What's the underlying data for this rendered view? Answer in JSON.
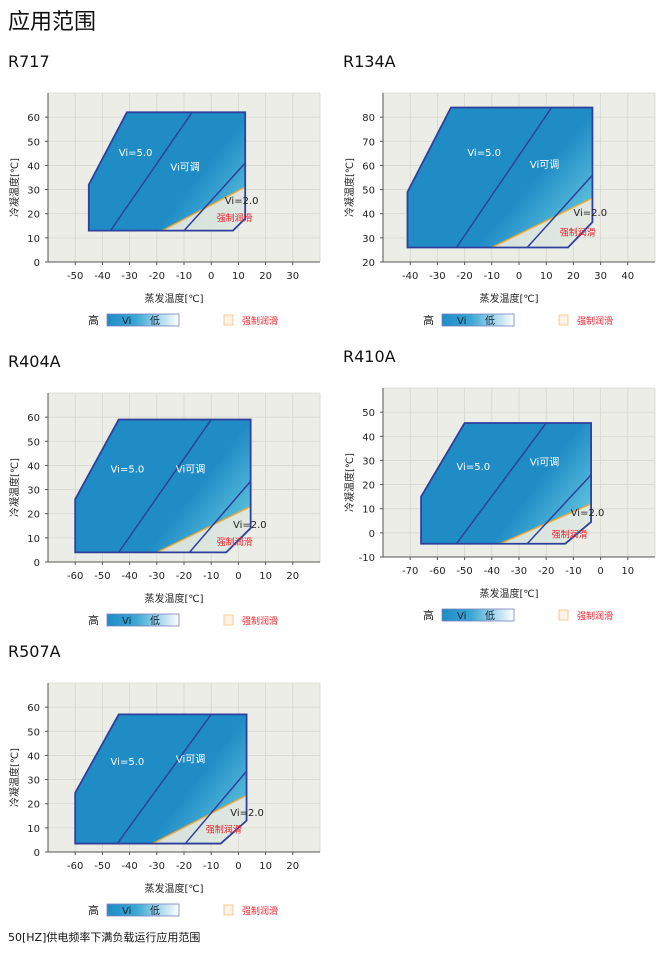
{
  "page_title": "应用范围",
  "footnote": "50[HZ]供电频率下满负载运行应用范围",
  "colors": {
    "border": "#2f3f9c",
    "lube_line": "#f0a830",
    "plot_bg": "#ecede6",
    "grid": "#d6d7cf",
    "vi_dark": "#1f8cc6",
    "vi_mid": "#5cc0dc",
    "vi_light": "#ffffff",
    "lube_text": "#e8202a",
    "lube_fill": "#f6efe0"
  },
  "legend": {
    "high": "高",
    "vi": "Vi",
    "low": "低",
    "lube": "强制润滑"
  },
  "chart_data": [
    {
      "type": "area",
      "title": "R717",
      "xlabel": "蒸发温度[℃]",
      "ylabel": "冷凝温度[℃]",
      "xlim": [
        -60,
        40
      ],
      "ylim": [
        0,
        70
      ],
      "xticks": [
        -50,
        -40,
        -30,
        -20,
        -10,
        0,
        10,
        20,
        30
      ],
      "yticks": [
        0,
        10,
        20,
        30,
        40,
        50,
        60
      ],
      "grid": true,
      "envelope": [
        [
          -45,
          13
        ],
        [
          -45,
          32
        ],
        [
          -31,
          62
        ],
        [
          12.5,
          62
        ],
        [
          12.5,
          18
        ],
        [
          8,
          13
        ]
      ],
      "vi5_line": [
        [
          -37,
          13
        ],
        [
          -7,
          62
        ]
      ],
      "vi2_line": [
        [
          -10,
          13
        ],
        [
          12.5,
          41
        ]
      ],
      "lube_line": [
        [
          -18,
          13
        ],
        [
          12.5,
          31
        ]
      ],
      "labels": [
        {
          "text": "Vi=5.0",
          "x": -34,
          "y": 44
        },
        {
          "text": "Vi可调",
          "x": -15,
          "y": 38
        },
        {
          "text": "Vi=2.0",
          "x": 5,
          "y": 24
        },
        {
          "text": "强制润滑",
          "x": 2,
          "y": 17
        }
      ]
    },
    {
      "type": "area",
      "title": "R134A",
      "xlabel": "蒸发温度[℃]",
      "ylabel": "冷凝温度[℃]",
      "xlim": [
        -50,
        50
      ],
      "ylim": [
        20,
        90
      ],
      "xticks": [
        -40,
        -30,
        -20,
        -10,
        0,
        10,
        20,
        30,
        40
      ],
      "yticks": [
        20,
        30,
        40,
        50,
        60,
        70,
        80
      ],
      "grid": true,
      "envelope": [
        [
          -41,
          26
        ],
        [
          -41,
          49
        ],
        [
          -25,
          84
        ],
        [
          27,
          84
        ],
        [
          27,
          36.5
        ],
        [
          18,
          26
        ]
      ],
      "vi5_line": [
        [
          -23,
          26
        ],
        [
          12,
          84
        ]
      ],
      "vi2_line": [
        [
          3,
          26
        ],
        [
          27,
          56
        ]
      ],
      "lube_line": [
        [
          -10,
          26
        ],
        [
          27,
          46.5
        ]
      ],
      "labels": [
        {
          "text": "Vi=5.0",
          "x": -19,
          "y": 64
        },
        {
          "text": "Vi可调",
          "x": 4,
          "y": 59
        },
        {
          "text": "Vi=2.0",
          "x": 20,
          "y": 39
        },
        {
          "text": "强制润滑",
          "x": 15,
          "y": 31
        }
      ]
    },
    {
      "type": "area",
      "title": "R404A",
      "xlabel": "蒸发温度[℃]",
      "ylabel": "冷凝温度[℃]",
      "xlim": [
        -70,
        30
      ],
      "ylim": [
        0,
        70
      ],
      "xticks": [
        -60,
        -50,
        -40,
        -30,
        -20,
        -10,
        0,
        10,
        20
      ],
      "yticks": [
        0,
        10,
        20,
        30,
        40,
        50,
        60
      ],
      "grid": true,
      "envelope": [
        [
          -60,
          4
        ],
        [
          -60,
          26
        ],
        [
          -44,
          59
        ],
        [
          4.5,
          59
        ],
        [
          4.5,
          14
        ],
        [
          -4.5,
          4
        ]
      ],
      "vi5_line": [
        [
          -44,
          4
        ],
        [
          -10,
          59
        ]
      ],
      "vi2_line": [
        [
          -18,
          4
        ],
        [
          4.5,
          33.5
        ]
      ],
      "lube_line": [
        [
          -30,
          4
        ],
        [
          4.5,
          23
        ]
      ],
      "labels": [
        {
          "text": "Vi=5.0",
          "x": -47,
          "y": 37
        },
        {
          "text": "Vi可调",
          "x": -23,
          "y": 37
        },
        {
          "text": "Vi=2.0",
          "x": -2,
          "y": 14
        },
        {
          "text": "强制润滑",
          "x": -8,
          "y": 7
        }
      ]
    },
    {
      "type": "area",
      "title": "R410A",
      "xlabel": "蒸发温度[℃]",
      "ylabel": "冷凝温度[℃]",
      "xlim": [
        -80,
        20
      ],
      "ylim": [
        -10,
        60
      ],
      "xticks": [
        -70,
        -60,
        -50,
        -40,
        -30,
        -20,
        -10,
        0,
        10
      ],
      "yticks": [
        -10,
        0,
        10,
        20,
        30,
        40,
        50
      ],
      "grid": true,
      "envelope": [
        [
          -66,
          -4.5
        ],
        [
          -66,
          15
        ],
        [
          -50,
          45.5
        ],
        [
          -3.5,
          45.5
        ],
        [
          -3.5,
          4.5
        ],
        [
          -13,
          -4.5
        ]
      ],
      "vi5_line": [
        [
          -53,
          -4.5
        ],
        [
          -20,
          45.5
        ]
      ],
      "vi2_line": [
        [
          -27,
          -4.5
        ],
        [
          -3.5,
          24
        ]
      ],
      "lube_line": [
        [
          -37,
          -4.5
        ],
        [
          -3.5,
          12
        ]
      ],
      "labels": [
        {
          "text": "Vi=5.0",
          "x": -53,
          "y": 26
        },
        {
          "text": "Vi可调",
          "x": -26,
          "y": 28
        },
        {
          "text": "Vi=2.0",
          "x": -11,
          "y": 7
        },
        {
          "text": "强制润滑",
          "x": -18,
          "y": -2
        }
      ]
    },
    {
      "type": "area",
      "title": "R507A",
      "xlabel": "蒸发温度[℃]",
      "ylabel": "冷凝温度[℃]",
      "xlim": [
        -70,
        30
      ],
      "ylim": [
        0,
        70
      ],
      "xticks": [
        -60,
        -50,
        -40,
        -30,
        -20,
        -10,
        0,
        10,
        20
      ],
      "yticks": [
        0,
        10,
        20,
        30,
        40,
        50,
        60
      ],
      "grid": true,
      "envelope": [
        [
          -60,
          3.5
        ],
        [
          -60,
          24.5
        ],
        [
          -44,
          57
        ],
        [
          3,
          57
        ],
        [
          3,
          13
        ],
        [
          -6.5,
          3.5
        ]
      ],
      "vi5_line": [
        [
          -44.5,
          3.5
        ],
        [
          -10,
          57
        ]
      ],
      "vi2_line": [
        [
          -19.5,
          3.5
        ],
        [
          3,
          33.5
        ]
      ],
      "lube_line": [
        [
          -31.5,
          3.5
        ],
        [
          3,
          23.5
        ]
      ],
      "labels": [
        {
          "text": "Vi=5.0",
          "x": -47,
          "y": 36
        },
        {
          "text": "Vi可调",
          "x": -23,
          "y": 37
        },
        {
          "text": "Vi=2.0",
          "x": -3,
          "y": 15
        },
        {
          "text": "强制润滑",
          "x": -12,
          "y": 8
        }
      ]
    }
  ]
}
